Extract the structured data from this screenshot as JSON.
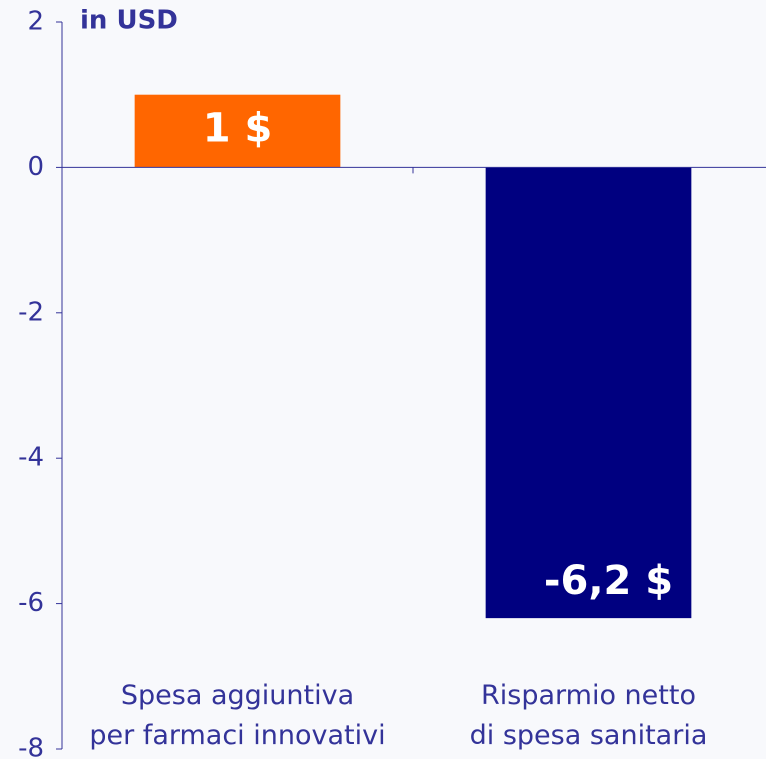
{
  "chart_data": {
    "type": "bar",
    "title": "in USD",
    "categories": [
      "Spesa aggiuntiva\nper farmaci innovativi",
      "Risparmio netto\ndi spesa sanitaria"
    ],
    "values": [
      1,
      -6.2
    ],
    "value_labels": [
      "1 $",
      "-6,2 $"
    ],
    "colors": [
      "#ff6600",
      "#000080"
    ],
    "ylim": [
      -8,
      2
    ],
    "yticks": [
      2,
      0,
      -2,
      -4,
      -6,
      -8
    ],
    "grid": false
  }
}
